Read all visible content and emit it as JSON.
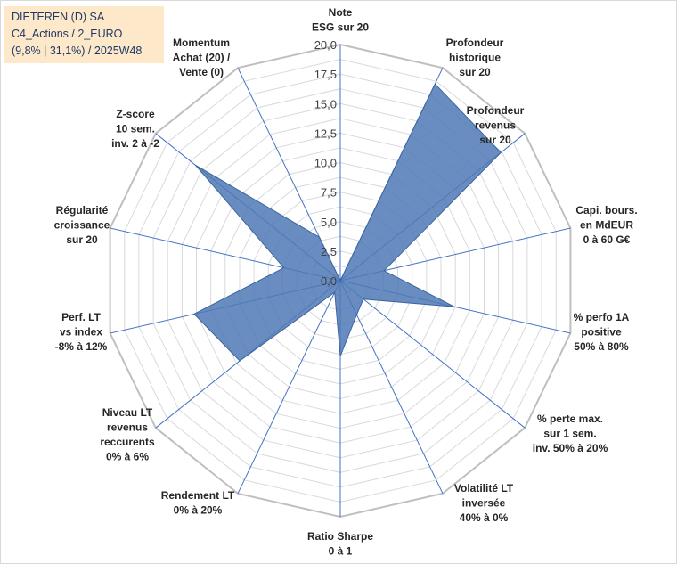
{
  "title": {
    "line1": "DIETEREN (D) SA",
    "line2": "C4_Actions / 2_EURO",
    "line3": "(9,8% | 31,1%) / 2025W48"
  },
  "colors": {
    "fill": "#4f79b5",
    "stroke": "#3c64a0",
    "grid": "#d9d9d9",
    "outer_ring": "#bfbfbf",
    "spoke": "#4472c4",
    "title_bg": "#fde9c9",
    "title_text": "#1f3864"
  },
  "chart_data": {
    "type": "radar",
    "range": [
      0,
      20
    ],
    "ticks": [
      "0,0",
      "2,5",
      "5,0",
      "7,5",
      "10,0",
      "12,5",
      "15,0",
      "17,5",
      "20,0"
    ],
    "tick_values": [
      0,
      2.5,
      5,
      7.5,
      10,
      12.5,
      15,
      17.5,
      20
    ],
    "axes": [
      {
        "label": [
          "Note",
          "ESG sur 20"
        ],
        "value": 0
      },
      {
        "label": [
          "Profondeur",
          "historique",
          "sur 20"
        ],
        "value": 18.5
      },
      {
        "label": [
          "Profondeur",
          "revenus",
          "sur 20"
        ],
        "value": 17.4
      },
      {
        "label": [
          "Capi. bours.",
          "en MdEUR",
          "0 à 60 G€"
        ],
        "value": 3.8
      },
      {
        "label": [
          "% perfo 1A",
          "positive",
          "50% à 80%"
        ],
        "value": 9.9
      },
      {
        "label": [
          "% perte max.",
          "sur 1 sem.",
          "inv. 50% à 20%"
        ],
        "value": 2.5
      },
      {
        "label": [
          "Volatilité LT",
          "inversée",
          "40% à 0%"
        ],
        "value": 3.2
      },
      {
        "label": [
          "Ratio Sharpe",
          "0 à 1"
        ],
        "value": 6.4
      },
      {
        "label": [
          "Rendement LT",
          "0% à 20%"
        ],
        "value": 1.1
      },
      {
        "label": [
          "Niveau LT",
          "revenus",
          "reccurents",
          "0% à 6%"
        ],
        "value": 10.9
      },
      {
        "label": [
          "Perf. LT",
          "vs index",
          "-8% à 12%"
        ],
        "value": 12.7
      },
      {
        "label": [
          "Régularité",
          "croissance",
          "sur 20"
        ],
        "value": 4.9
      },
      {
        "label": [
          "Z-score",
          "10 sem.",
          "inv. 2 à -2"
        ],
        "value": 15.7
      },
      {
        "label": [
          "Momentum",
          "Achat (20) /",
          "Vente (0)"
        ],
        "value": 4.1
      }
    ]
  }
}
